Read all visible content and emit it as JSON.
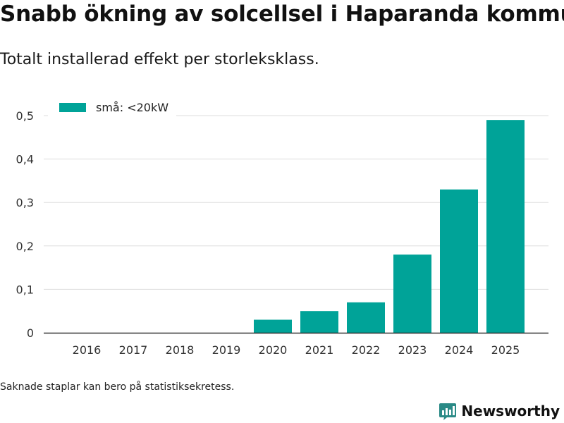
{
  "header": {
    "title": "Snabb ökning av solcellsel i Haparanda kommun",
    "subtitle": "Totalt installerad effekt per storleksklass."
  },
  "footer": {
    "note": "Saknade staplar kan bero på statistiksekretess.",
    "brand": "Newsworthy"
  },
  "colors": {
    "bar": "#00a398",
    "grid": "#dddddd",
    "axis": "#333333",
    "brand": "#2a8a86"
  },
  "chart_data": {
    "type": "bar",
    "title": "Snabb ökning av solcellsel i Haparanda kommun",
    "subtitle": "Totalt installerad effekt per storleksklass.",
    "xlabel": "",
    "ylabel": "",
    "categories": [
      "2016",
      "2017",
      "2018",
      "2019",
      "2020",
      "2021",
      "2022",
      "2023",
      "2024",
      "2025"
    ],
    "series": [
      {
        "name": "små: <20kW",
        "values": [
          null,
          null,
          null,
          null,
          0.03,
          0.05,
          0.07,
          0.18,
          0.33,
          0.49
        ]
      }
    ],
    "ylim": [
      0,
      0.5
    ],
    "yticks": [
      0,
      0.1,
      0.2,
      0.3,
      0.4,
      0.5
    ],
    "ytick_labels": [
      "0",
      "0,1",
      "0,2",
      "0,3",
      "0,4",
      "0,5"
    ],
    "grid": true,
    "legend_position": "top-left"
  }
}
